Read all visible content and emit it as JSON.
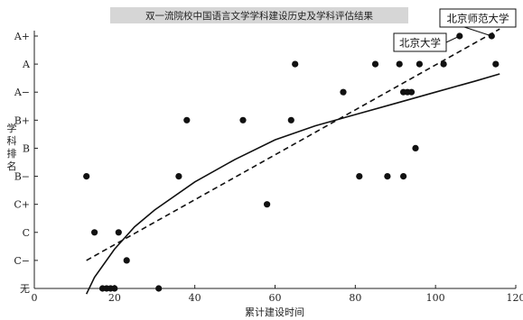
{
  "chart_data": {
    "type": "scatter",
    "title": "双一流院校中国语言文学学科建设历史及学科评估结果",
    "xlabel": "累计建设时间",
    "ylabel": "学科排名",
    "xlim": [
      0,
      120
    ],
    "x_ticks": [
      0,
      20,
      40,
      60,
      80,
      100,
      120
    ],
    "y_categories": [
      "无",
      "C−",
      "C",
      "C+",
      "B−",
      "B",
      "B+",
      "A−",
      "A",
      "A+"
    ],
    "grid": false,
    "points": [
      {
        "x": 13,
        "y": "B−"
      },
      {
        "x": 15,
        "y": "C"
      },
      {
        "x": 17,
        "y": "无"
      },
      {
        "x": 18,
        "y": "无"
      },
      {
        "x": 19,
        "y": "无"
      },
      {
        "x": 20,
        "y": "无"
      },
      {
        "x": 21,
        "y": "C"
      },
      {
        "x": 23,
        "y": "C−"
      },
      {
        "x": 31,
        "y": "无"
      },
      {
        "x": 36,
        "y": "B−"
      },
      {
        "x": 38,
        "y": "B+"
      },
      {
        "x": 52,
        "y": "B+"
      },
      {
        "x": 58,
        "y": "C+"
      },
      {
        "x": 64,
        "y": "B+"
      },
      {
        "x": 65,
        "y": "A"
      },
      {
        "x": 77,
        "y": "A−"
      },
      {
        "x": 81,
        "y": "B−"
      },
      {
        "x": 85,
        "y": "A"
      },
      {
        "x": 88,
        "y": "B−"
      },
      {
        "x": 91,
        "y": "A"
      },
      {
        "x": 92,
        "y": "B−"
      },
      {
        "x": 92,
        "y": "A−"
      },
      {
        "x": 93,
        "y": "A−"
      },
      {
        "x": 94,
        "y": "A−"
      },
      {
        "x": 95,
        "y": "B"
      },
      {
        "x": 96,
        "y": "A"
      },
      {
        "x": 102,
        "y": "A"
      },
      {
        "x": 106,
        "y": "A+"
      },
      {
        "x": 114,
        "y": "A+"
      },
      {
        "x": 115,
        "y": "A"
      }
    ],
    "series": [
      {
        "style": "solid",
        "points": [
          [
            13,
            -0.2
          ],
          [
            15,
            0.4
          ],
          [
            20,
            1.4
          ],
          [
            25,
            2.2
          ],
          [
            30,
            2.8
          ],
          [
            40,
            3.8
          ],
          [
            50,
            4.6
          ],
          [
            60,
            5.3
          ],
          [
            70,
            5.8
          ],
          [
            80,
            6.2
          ],
          [
            90,
            6.6
          ],
          [
            100,
            7.0
          ],
          [
            110,
            7.4
          ],
          [
            116,
            7.65
          ]
        ]
      },
      {
        "style": "dashed",
        "points": [
          [
            13,
            1.0
          ],
          [
            116,
            9.25
          ]
        ]
      }
    ],
    "annotations": [
      {
        "text": "北京师范大学",
        "x": 114,
        "y": "A+"
      },
      {
        "text": "北京大学",
        "x": 106,
        "y": "A+"
      }
    ]
  }
}
